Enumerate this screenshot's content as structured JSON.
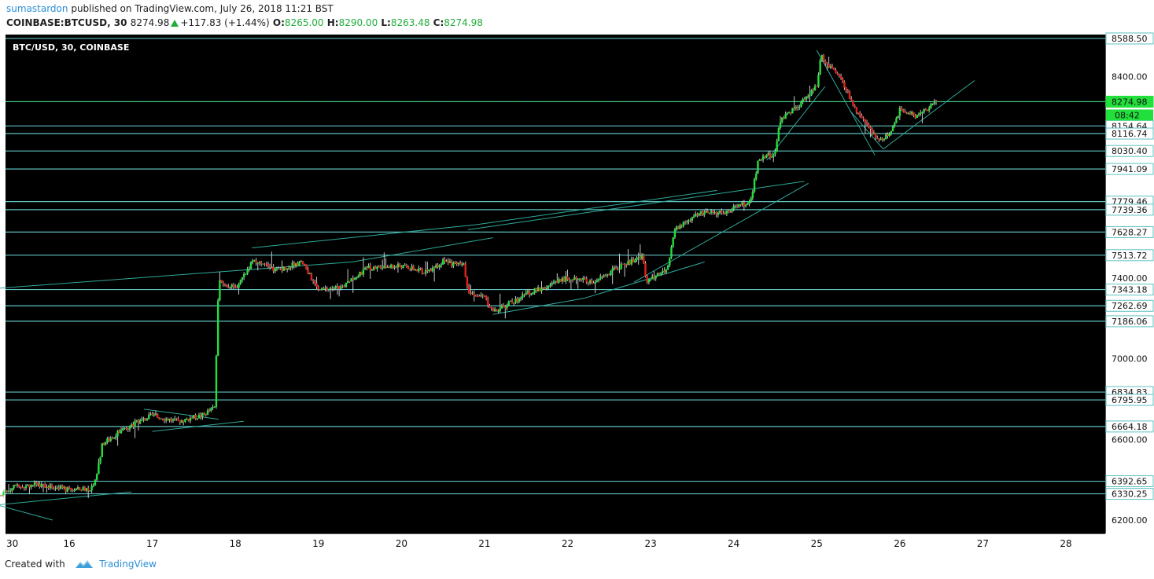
{
  "header": {
    "author": "sumastardon",
    "published_text": "published on TradingView.com, July 26, 2018 11:21 BST",
    "symbol": "COINBASE:BTCUSD, 30",
    "last": "8274.98",
    "change": "+117.83 (+1.44%)",
    "open_label": "O:",
    "open": "8265.00",
    "high_label": "H:",
    "high": "8290.00",
    "low_label": "L:",
    "low": "8263.48",
    "close_label": "C:",
    "close": "8274.98"
  },
  "footer": {
    "created_with": "Created with",
    "brand": "TradingView"
  },
  "colors": {
    "background": "#000000",
    "up": "#22e03c",
    "down": "#e2231a",
    "level_line": "#5fc0c0",
    "trend_line": "#2fa89a",
    "axis_text": "#111111",
    "price_tag": "#22e03c"
  },
  "chart_data": {
    "type": "candlestick",
    "title": "BTC/USD, 30, COINBASE",
    "x_ticks": [
      "30",
      "16",
      "17",
      "18",
      "19",
      "20",
      "21",
      "22",
      "23",
      "24",
      "25",
      "26",
      "27",
      "28"
    ],
    "y_ticks": [
      "6200.00",
      "6600.00",
      "7000.00",
      "7400.00",
      "8400.00"
    ],
    "ylim": [
      6170,
      8620
    ],
    "horizontal_levels": [
      "8588.50",
      "8274.98",
      "8154.64",
      "8116.74",
      "8030.40",
      "7941.09",
      "7779.46",
      "7739.36",
      "7628.27",
      "7513.72",
      "7343.18",
      "7262.69",
      "7186.06",
      "6834.83",
      "6795.95",
      "6664.18",
      "6392.65",
      "6330.25"
    ],
    "current_price": "8274.98",
    "countdown": "08:42",
    "price_path": [
      {
        "x": "15.0",
        "y": 6280
      },
      {
        "x": "15.3",
        "y": 6360
      },
      {
        "x": "15.6",
        "y": 6380
      },
      {
        "x": "16.0",
        "y": 6350
      },
      {
        "x": "16.3",
        "y": 6360
      },
      {
        "x": "16.4",
        "y": 6580
      },
      {
        "x": "16.7",
        "y": 6660
      },
      {
        "x": "17.0",
        "y": 6720
      },
      {
        "x": "17.3",
        "y": 6690
      },
      {
        "x": "17.6",
        "y": 6720
      },
      {
        "x": "17.75",
        "y": 6760
      },
      {
        "x": "17.8",
        "y": 7380
      },
      {
        "x": "18.0",
        "y": 7350
      },
      {
        "x": "18.2",
        "y": 7480
      },
      {
        "x": "18.5",
        "y": 7440
      },
      {
        "x": "18.8",
        "y": 7480
      },
      {
        "x": "19.0",
        "y": 7340
      },
      {
        "x": "19.3",
        "y": 7360
      },
      {
        "x": "19.6",
        "y": 7450
      },
      {
        "x": "20.0",
        "y": 7460
      },
      {
        "x": "20.3",
        "y": 7430
      },
      {
        "x": "20.5",
        "y": 7480
      },
      {
        "x": "20.75",
        "y": 7460
      },
      {
        "x": "20.8",
        "y": 7340
      },
      {
        "x": "21.0",
        "y": 7300
      },
      {
        "x": "21.1",
        "y": 7230
      },
      {
        "x": "21.5",
        "y": 7320
      },
      {
        "x": "22.0",
        "y": 7400
      },
      {
        "x": "22.3",
        "y": 7380
      },
      {
        "x": "22.6",
        "y": 7450
      },
      {
        "x": "22.9",
        "y": 7510
      },
      {
        "x": "22.95",
        "y": 7380
      },
      {
        "x": "23.2",
        "y": 7440
      },
      {
        "x": "23.3",
        "y": 7650
      },
      {
        "x": "23.6",
        "y": 7720
      },
      {
        "x": "23.9",
        "y": 7730
      },
      {
        "x": "24.2",
        "y": 7780
      },
      {
        "x": "24.3",
        "y": 7990
      },
      {
        "x": "24.5",
        "y": 8020
      },
      {
        "x": "24.55",
        "y": 8180
      },
      {
        "x": "24.8",
        "y": 8260
      },
      {
        "x": "25.0",
        "y": 8360
      },
      {
        "x": "25.05",
        "y": 8500
      },
      {
        "x": "25.3",
        "y": 8380
      },
      {
        "x": "25.5",
        "y": 8210
      },
      {
        "x": "25.75",
        "y": 8080
      },
      {
        "x": "25.9",
        "y": 8120
      },
      {
        "x": "26.0",
        "y": 8240
      },
      {
        "x": "26.2",
        "y": 8200
      },
      {
        "x": "26.45",
        "y": 8275
      }
    ],
    "grid": false,
    "legend": "none"
  }
}
